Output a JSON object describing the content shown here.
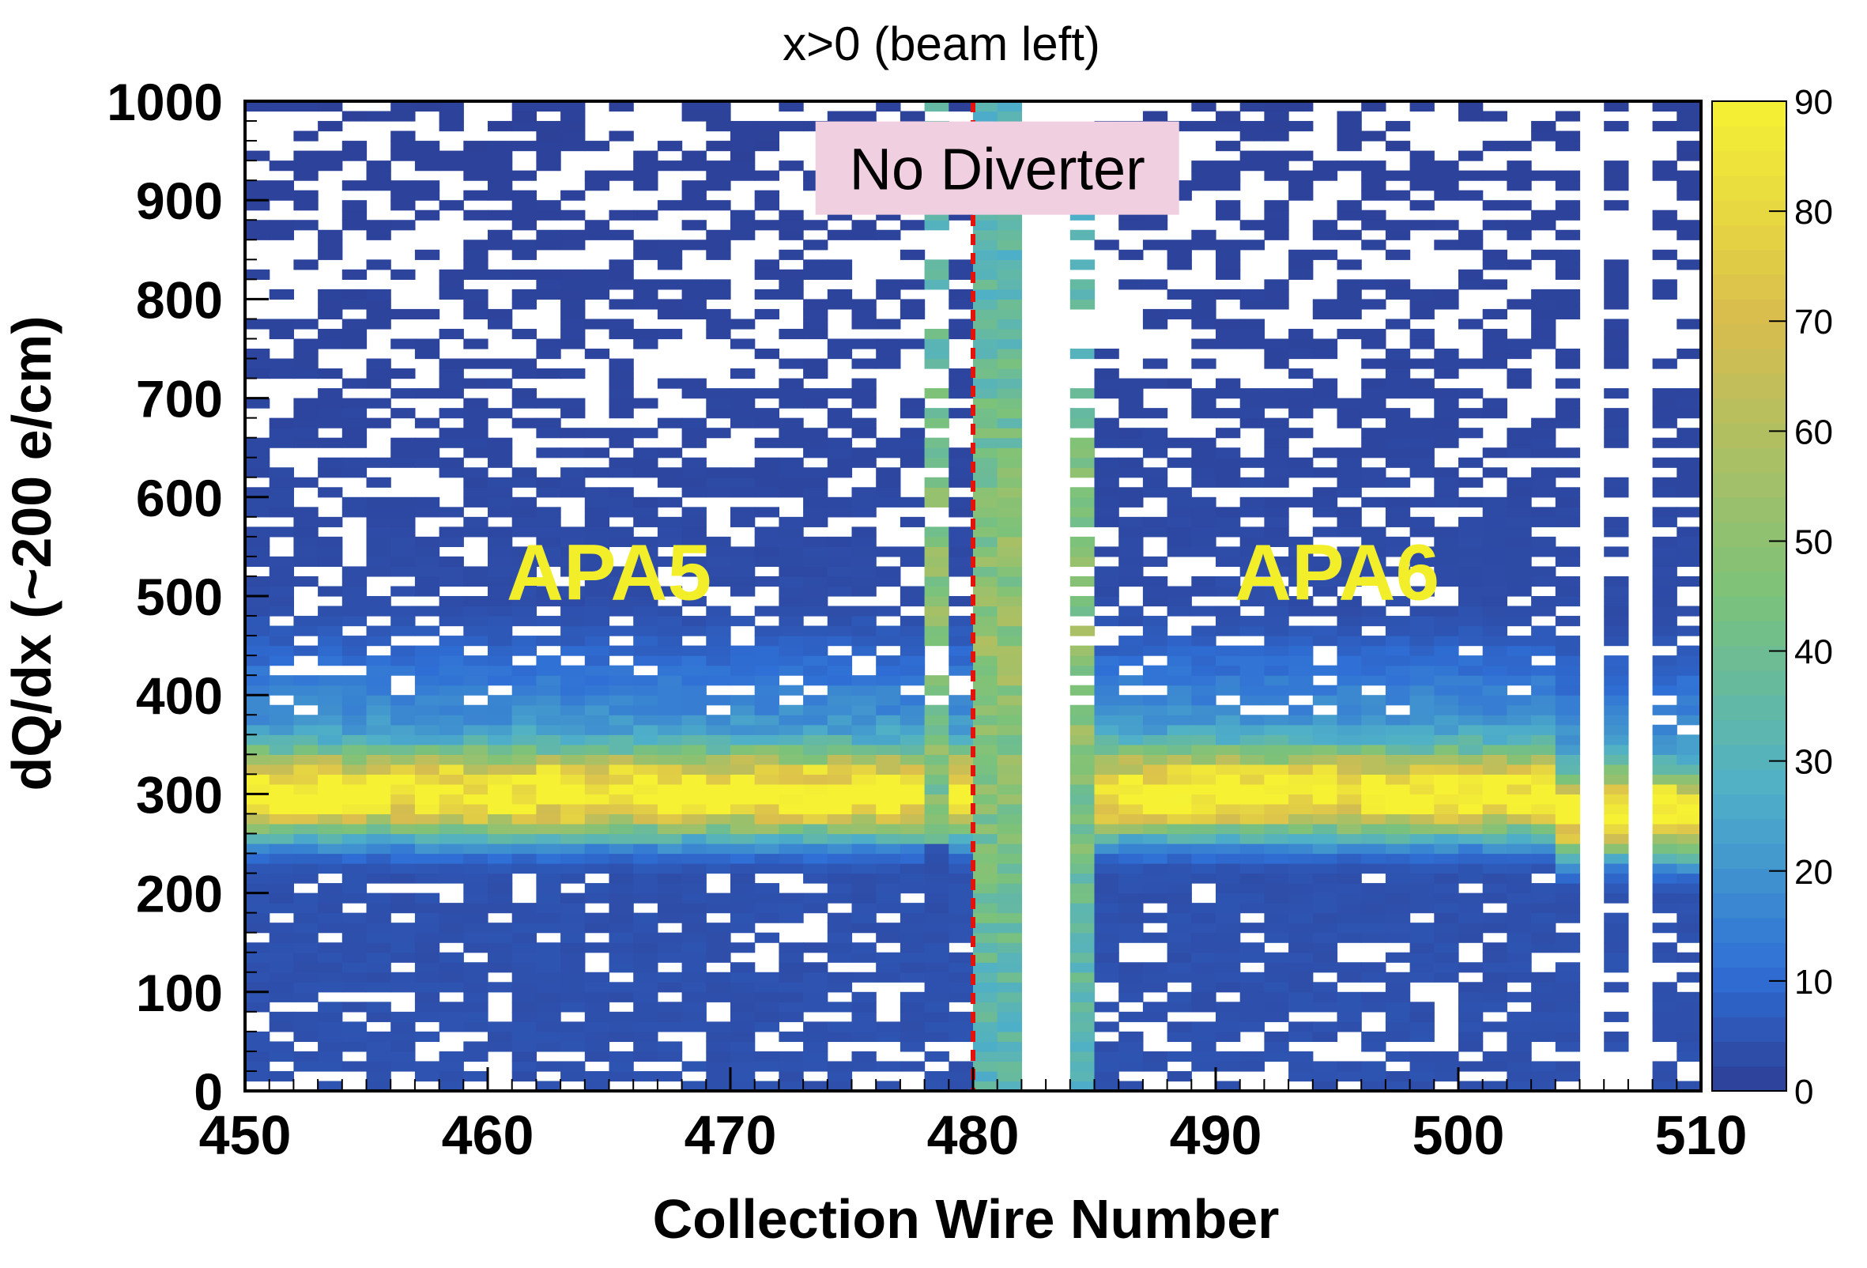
{
  "chart_data": {
    "type": "heatmap",
    "title": "x>0 (beam left)",
    "xlabel": "Collection Wire Number",
    "ylabel": "dQ/dx (~200 e/cm)",
    "xlim": [
      450,
      510
    ],
    "ylim": [
      0,
      1000
    ],
    "x_ticks": [
      "450",
      "460",
      "470",
      "480",
      "490",
      "500",
      "510"
    ],
    "y_ticks": [
      "0",
      "100",
      "200",
      "300",
      "400",
      "500",
      "600",
      "700",
      "800",
      "900",
      "1000"
    ],
    "colorbar": {
      "range": [
        0,
        90
      ],
      "ticks": [
        "0",
        "10",
        "20",
        "30",
        "40",
        "50",
        "60",
        "70",
        "80",
        "90"
      ],
      "colors": [
        "#2d3f96",
        "#2f6fd6",
        "#4fb0c8",
        "#7cc27a",
        "#d9bd4e",
        "#f6f233"
      ]
    },
    "bins": {
      "x_bin_width": 1,
      "y_bin_width": 10
    },
    "peak_dqdx": 300,
    "dead_wire_ranges": [
      [
        482,
        484
      ],
      [
        505,
        506
      ],
      [
        507,
        508
      ]
    ],
    "missing_low_dqdx_wires": [
      478,
      484
    ],
    "divider_x": 480,
    "divider_color": "#e3120b",
    "annotations": [
      {
        "text": "APA5",
        "x": 465,
        "y": 525
      },
      {
        "text": "APA6",
        "x": 495,
        "y": 525
      },
      {
        "text": "No Diverter",
        "x": 481,
        "y": 930
      }
    ],
    "annotation_box_color": "#f0cfe0",
    "grid": false
  }
}
